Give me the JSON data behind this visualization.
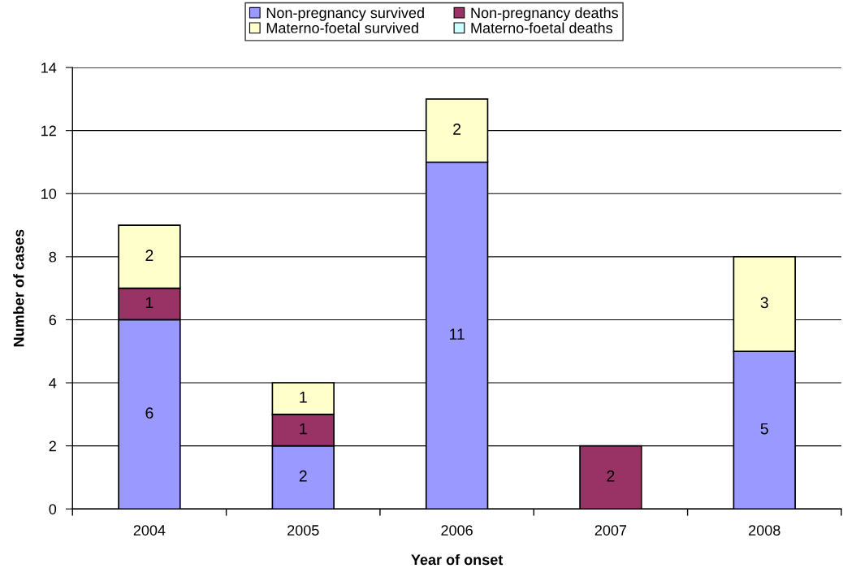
{
  "chart_data": {
    "type": "bar",
    "stacked": true,
    "categories": [
      "2004",
      "2005",
      "2006",
      "2007",
      "2008"
    ],
    "xlabel": "Year of onset",
    "ylabel": "Number of cases",
    "ylim": [
      0,
      14
    ],
    "yticks": [
      0,
      2,
      4,
      6,
      8,
      10,
      12,
      14
    ],
    "grid": "y",
    "legend": "top",
    "data_labels": true,
    "series": [
      {
        "name": "Non-pregnancy survived",
        "color": "#9999ff",
        "values": [
          6,
          2,
          11,
          null,
          5
        ]
      },
      {
        "name": "Non-pregnancy deaths",
        "color": "#993366",
        "values": [
          1,
          1,
          null,
          2,
          null
        ]
      },
      {
        "name": "Materno-foetal survived",
        "color": "#ffffcc",
        "values": [
          2,
          1,
          2,
          null,
          3
        ]
      },
      {
        "name": "Materno-foetal deaths",
        "color": "#ccffff",
        "values": [
          null,
          null,
          null,
          null,
          null
        ]
      }
    ]
  }
}
